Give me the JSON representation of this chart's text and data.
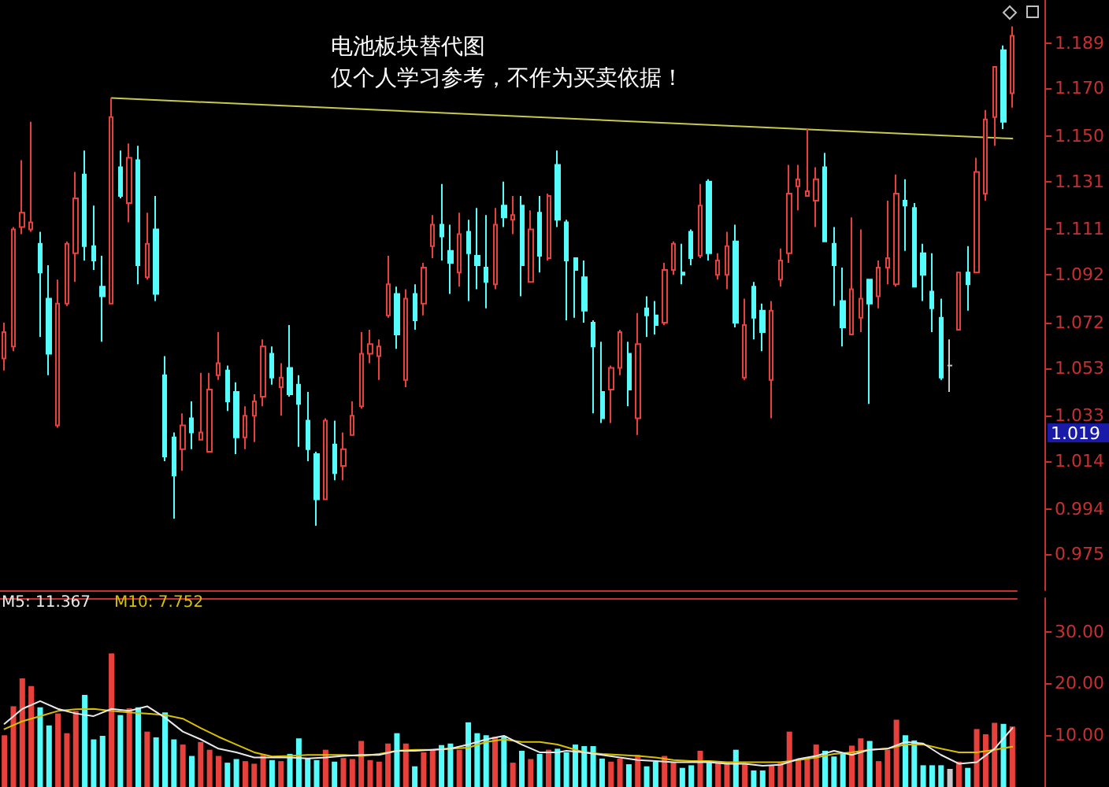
{
  "chart_data": [
    {
      "type": "candlestick",
      "title": "电池板块替代图",
      "subtitle": "仅个人学习参考，不作为买卖依据！",
      "categories": [
        null,
        null,
        null,
        null,
        null,
        null,
        null,
        null,
        null,
        null,
        null,
        null,
        null,
        null,
        null,
        null,
        null,
        null,
        null,
        null,
        null,
        null,
        null,
        null,
        null,
        null,
        null,
        null,
        null,
        null,
        null,
        null,
        null,
        null,
        null,
        null,
        null,
        null,
        null,
        null,
        null,
        null,
        null,
        null,
        null,
        null,
        null,
        null,
        null,
        null,
        null,
        null,
        null,
        null,
        null,
        null,
        null,
        null,
        null,
        null,
        null,
        null,
        null,
        null,
        null,
        null,
        null,
        null,
        null,
        null,
        null,
        null,
        null,
        null,
        null,
        null,
        null,
        null,
        null,
        null,
        null,
        null,
        null,
        null,
        null,
        null,
        null,
        null,
        null,
        null,
        null,
        null,
        null,
        null,
        null,
        null,
        null,
        null,
        null,
        null,
        null,
        null,
        null,
        null,
        null,
        null,
        null,
        null,
        null,
        null,
        null,
        null,
        null,
        null
      ],
      "series": [
        {
          "type": "candlestick",
          "ohlc": [
            [
              1.057,
              1.072,
              1.052,
              1.068
            ],
            [
              1.062,
              1.112,
              1.06,
              1.111
            ],
            [
              1.112,
              1.14,
              1.109,
              1.118
            ],
            [
              1.111,
              1.156,
              1.11,
              1.114
            ],
            [
              1.105,
              1.11,
              1.066,
              1.093
            ],
            [
              1.082,
              1.096,
              1.05,
              1.059
            ],
            [
              1.029,
              1.09,
              1.028,
              1.08
            ],
            [
              1.08,
              1.106,
              1.079,
              1.105
            ],
            [
              1.101,
              1.135,
              1.089,
              1.124
            ],
            [
              1.134,
              1.144,
              1.098,
              1.104
            ],
            [
              1.104,
              1.121,
              1.094,
              1.098
            ],
            [
              1.087,
              1.1,
              1.064,
              1.083
            ],
            [
              1.08,
              1.166,
              1.08,
              1.158
            ],
            [
              1.137,
              1.144,
              1.124,
              1.125
            ],
            [
              1.122,
              1.147,
              1.114,
              1.141
            ],
            [
              1.14,
              1.146,
              1.088,
              1.096
            ],
            [
              1.091,
              1.118,
              1.09,
              1.105
            ],
            [
              1.111,
              1.125,
              1.081,
              1.084
            ],
            [
              1.05,
              1.058,
              1.014,
              1.016
            ],
            [
              1.024,
              1.026,
              0.99,
              1.008
            ],
            [
              1.019,
              1.034,
              1.01,
              1.029
            ],
            [
              1.032,
              1.039,
              1.019,
              1.026
            ],
            [
              1.023,
              1.051,
              1.023,
              1.026
            ],
            [
              1.018,
              1.051,
              1.018,
              1.044
            ],
            [
              1.05,
              1.068,
              1.048,
              1.055
            ],
            [
              1.052,
              1.054,
              1.035,
              1.039
            ],
            [
              1.043,
              1.047,
              1.017,
              1.024
            ],
            [
              1.024,
              1.037,
              1.019,
              1.033
            ],
            [
              1.033,
              1.042,
              1.022,
              1.039
            ],
            [
              1.041,
              1.065,
              1.037,
              1.062
            ],
            [
              1.059,
              1.062,
              1.046,
              1.049
            ],
            [
              1.045,
              1.055,
              1.033,
              1.049
            ],
            [
              1.053,
              1.071,
              1.041,
              1.042
            ],
            [
              1.046,
              1.05,
              1.02,
              1.038
            ],
            [
              1.031,
              1.043,
              1.014,
              1.019
            ],
            [
              1.017,
              1.018,
              0.987,
              0.998
            ],
            [
              0.998,
              1.032,
              0.998,
              1.031
            ],
            [
              1.021,
              1.031,
              1.006,
              1.009
            ],
            [
              1.012,
              1.026,
              1.006,
              1.019
            ],
            [
              1.025,
              1.039,
              1.025,
              1.033
            ],
            [
              1.037,
              1.068,
              1.036,
              1.059
            ],
            [
              1.059,
              1.069,
              1.055,
              1.063
            ],
            [
              1.058,
              1.065,
              1.048,
              1.062
            ],
            [
              1.075,
              1.1,
              1.074,
              1.088
            ],
            [
              1.084,
              1.087,
              1.061,
              1.067
            ],
            [
              1.048,
              1.086,
              1.045,
              1.082
            ],
            [
              1.084,
              1.088,
              1.069,
              1.073
            ],
            [
              1.08,
              1.097,
              1.075,
              1.095
            ],
            [
              1.104,
              1.117,
              1.099,
              1.113
            ],
            [
              1.113,
              1.13,
              1.098,
              1.108
            ],
            [
              1.102,
              1.113,
              1.084,
              1.097
            ],
            [
              1.093,
              1.118,
              1.087,
              1.109
            ],
            [
              1.11,
              1.115,
              1.081,
              1.101
            ],
            [
              1.1,
              1.12,
              1.086,
              1.096
            ],
            [
              1.095,
              1.117,
              1.078,
              1.089
            ],
            [
              1.088,
              1.12,
              1.086,
              1.113
            ],
            [
              1.121,
              1.131,
              1.112,
              1.116
            ],
            [
              1.115,
              1.125,
              1.109,
              1.117
            ],
            [
              1.121,
              1.125,
              1.083,
              1.096
            ],
            [
              1.089,
              1.119,
              1.089,
              1.111
            ],
            [
              1.118,
              1.125,
              1.093,
              1.1
            ],
            [
              1.099,
              1.126,
              1.098,
              1.125
            ],
            [
              1.138,
              1.144,
              1.112,
              1.115
            ],
            [
              1.114,
              1.115,
              1.073,
              1.098
            ],
            [
              1.099,
              1.099,
              1.074,
              1.094
            ],
            [
              1.091,
              1.098,
              1.072,
              1.077
            ],
            [
              1.072,
              1.073,
              1.034,
              1.062
            ],
            [
              1.043,
              1.064,
              1.03,
              1.032
            ],
            [
              1.044,
              1.054,
              1.03,
              1.053
            ],
            [
              1.053,
              1.069,
              1.05,
              1.068
            ],
            [
              1.059,
              1.064,
              1.037,
              1.044
            ],
            [
              1.032,
              1.076,
              1.025,
              1.063
            ],
            [
              1.078,
              1.083,
              1.066,
              1.075
            ],
            [
              1.075,
              1.081,
              1.067,
              1.071
            ],
            [
              1.072,
              1.097,
              1.071,
              1.094
            ],
            [
              1.094,
              1.106,
              1.092,
              1.105
            ],
            [
              1.093,
              1.105,
              1.088,
              1.092
            ],
            [
              1.11,
              1.111,
              1.096,
              1.099
            ],
            [
              1.1,
              1.13,
              1.099,
              1.121
            ],
            [
              1.131,
              1.132,
              1.098,
              1.101
            ],
            [
              1.092,
              1.101,
              1.09,
              1.098
            ],
            [
              1.092,
              1.11,
              1.086,
              1.104
            ],
            [
              1.106,
              1.113,
              1.07,
              1.072
            ],
            [
              1.049,
              1.082,
              1.048,
              1.071
            ],
            [
              1.087,
              1.089,
              1.065,
              1.074
            ],
            [
              1.077,
              1.08,
              1.06,
              1.068
            ],
            [
              1.048,
              1.081,
              1.032,
              1.077
            ],
            [
              1.09,
              1.103,
              1.087,
              1.098
            ],
            [
              1.101,
              1.138,
              1.097,
              1.126
            ],
            [
              1.129,
              1.138,
              1.119,
              1.132
            ],
            [
              1.125,
              1.153,
              1.125,
              1.127
            ],
            [
              1.123,
              1.137,
              1.112,
              1.132
            ],
            [
              1.137,
              1.143,
              1.106,
              1.106
            ],
            [
              1.105,
              1.112,
              1.079,
              1.096
            ],
            [
              1.081,
              1.095,
              1.062,
              1.07
            ],
            [
              1.067,
              1.116,
              1.067,
              1.086
            ],
            [
              1.074,
              1.111,
              1.068,
              1.082
            ],
            [
              1.09,
              1.09,
              1.038,
              1.08
            ],
            [
              1.083,
              1.098,
              1.078,
              1.095
            ],
            [
              1.095,
              1.123,
              1.088,
              1.099
            ],
            [
              1.088,
              1.134,
              1.087,
              1.126
            ],
            [
              1.123,
              1.132,
              1.102,
              1.121
            ],
            [
              1.12,
              1.122,
              1.087,
              1.087
            ],
            [
              1.101,
              1.105,
              1.081,
              1.092
            ],
            [
              1.085,
              1.101,
              1.068,
              1.078
            ],
            [
              1.074,
              1.082,
              1.048,
              1.049
            ],
            [
              1.054,
              1.065,
              1.043,
              1.054
            ],
            [
              1.069,
              1.093,
              1.069,
              1.093
            ],
            [
              1.093,
              1.104,
              1.077,
              1.088
            ],
            [
              1.093,
              1.141,
              1.093,
              1.135
            ],
            [
              1.126,
              1.161,
              1.123,
              1.157
            ],
            [
              1.158,
              1.179,
              1.146,
              1.179
            ],
            [
              1.186,
              1.188,
              1.153,
              1.156
            ],
            [
              1.168,
              1.196,
              1.162,
              1.192
            ]
          ],
          "colors": [
            "#e8413c",
            "#e8413c",
            "#e8413c",
            "#e8413c",
            "#54fcfc",
            "#54fcfc",
            "#e8413c",
            "#e8413c",
            "#e8413c",
            "#54fcfc",
            "#54fcfc",
            "#54fcfc",
            "#e8413c",
            "#54fcfc",
            "#e8413c",
            "#54fcfc",
            "#e8413c",
            "#54fcfc",
            "#54fcfc",
            "#54fcfc",
            "#e8413c",
            "#54fcfc",
            "#e8413c",
            "#e8413c",
            "#e8413c",
            "#54fcfc",
            "#54fcfc",
            "#e8413c",
            "#e8413c",
            "#e8413c",
            "#54fcfc",
            "#e8413c",
            "#54fcfc",
            "#54fcfc",
            "#54fcfc",
            "#54fcfc",
            "#e8413c",
            "#54fcfc",
            "#e8413c",
            "#e8413c",
            "#e8413c",
            "#e8413c",
            "#e8413c",
            "#e8413c",
            "#54fcfc",
            "#e8413c",
            "#54fcfc",
            "#e8413c",
            "#e8413c",
            "#54fcfc",
            "#54fcfc",
            "#e8413c",
            "#54fcfc",
            "#54fcfc",
            "#54fcfc",
            "#e8413c",
            "#54fcfc",
            "#e8413c",
            "#54fcfc",
            "#e8413c",
            "#54fcfc",
            "#e8413c",
            "#54fcfc",
            "#54fcfc",
            "#54fcfc",
            "#54fcfc",
            "#54fcfc",
            "#54fcfc",
            "#e8413c",
            "#e8413c",
            "#54fcfc",
            "#e8413c",
            "#54fcfc",
            "#54fcfc",
            "#e8413c",
            "#e8413c",
            "#54fcfc",
            "#54fcfc",
            "#e8413c",
            "#54fcfc",
            "#e8413c",
            "#e8413c",
            "#54fcfc",
            "#e8413c",
            "#54fcfc",
            "#54fcfc",
            "#e8413c",
            "#e8413c",
            "#e8413c",
            "#e8413c",
            "#e8413c",
            "#e8413c",
            "#54fcfc",
            "#54fcfc",
            "#54fcfc",
            "#e8413c",
            "#e8413c",
            "#54fcfc",
            "#e8413c",
            "#e8413c",
            "#e8413c",
            "#54fcfc",
            "#54fcfc",
            "#54fcfc",
            "#54fcfc",
            "#54fcfc",
            "#c8c8c8",
            "#e8413c",
            "#54fcfc",
            "#e8413c",
            "#e8413c",
            "#e8413c",
            "#54fcfc",
            "#e8413c"
          ]
        },
        {
          "type": "line",
          "color": "#c8c84a",
          "values": [
            null,
            null,
            null,
            null,
            null,
            null,
            null,
            null,
            null,
            null,
            null,
            null,
            1.166,
            null,
            null,
            null,
            null,
            null,
            null,
            null,
            null,
            null,
            null,
            null,
            null,
            null,
            null,
            null,
            null,
            null,
            null,
            null,
            null,
            null,
            null,
            null,
            null,
            null,
            null,
            null,
            null,
            null,
            null,
            null,
            null,
            null,
            null,
            null,
            null,
            null,
            null,
            null,
            null,
            null,
            null,
            null,
            null,
            null,
            null,
            null,
            null,
            null,
            null,
            null,
            null,
            null,
            null,
            null,
            null,
            null,
            null,
            null,
            null,
            null,
            null,
            null,
            null,
            null,
            null,
            null,
            null,
            null,
            null,
            null,
            null,
            null,
            null,
            null,
            null,
            null,
            null,
            null,
            null,
            null,
            null,
            null,
            null,
            null,
            null,
            null,
            null,
            null,
            null,
            null,
            null,
            null,
            null,
            null,
            null,
            null,
            null,
            null,
            null,
            1.149
          ]
        }
      ],
      "ylim": [
        0.96,
        1.207
      ],
      "yticks": [
        1.189,
        {
          "value": 1.17,
          "label": "1.170"
        },
        {
          "value": 1.15,
          "label": "1.150"
        },
        1.131,
        1.111,
        1.092,
        1.072,
        1.053,
        1.033,
        1.014,
        0.994,
        0.975
      ],
      "annotations": [
        "1.019"
      ],
      "grid": false,
      "tick_labels": "y"
    },
    {
      "type": "bar",
      "categories": [
        null,
        null,
        null,
        null,
        null,
        null,
        null,
        null,
        null,
        null,
        null,
        null,
        null,
        null,
        null,
        null,
        null,
        null,
        null,
        null,
        null,
        null,
        null,
        null,
        null,
        null,
        null,
        null,
        null,
        null,
        null,
        null,
        null,
        null,
        null,
        null,
        null,
        null,
        null,
        null,
        null,
        null,
        null,
        null,
        null,
        null,
        null,
        null,
        null,
        null,
        null,
        null,
        null,
        null,
        null,
        null,
        null,
        null,
        null,
        null,
        null,
        null,
        null,
        null,
        null,
        null,
        null,
        null,
        null,
        null,
        null,
        null,
        null,
        null,
        null,
        null,
        null,
        null,
        null,
        null,
        null,
        null,
        null,
        null,
        null,
        null,
        null,
        null,
        null,
        null,
        null,
        null,
        null,
        null,
        null,
        null,
        null,
        null,
        null,
        null,
        null,
        null,
        null,
        null,
        null,
        null,
        null,
        null,
        null,
        null,
        null,
        null,
        null,
        null
      ],
      "series": [
        {
          "type": "bar",
          "values": [
            10,
            15.6,
            21.0,
            19.5,
            15.4,
            11.9,
            14.2,
            10.4,
            14.7,
            17.8,
            9.2,
            9.9,
            25.8,
            13.9,
            15.2,
            15.4,
            10.7,
            9.6,
            14.4,
            9.2,
            8.2,
            6.0,
            8.7,
            7.2,
            6.0,
            4.7,
            5.4,
            5.0,
            4.5,
            6.2,
            5.2,
            5.0,
            6.4,
            9.4,
            5.5,
            5.2,
            7.2,
            4.9,
            5.6,
            5.4,
            8.9,
            5.2,
            4.9,
            8.4,
            10.4,
            8.4,
            4.0,
            6.7,
            7.2,
            8.1,
            8.4,
            7.2,
            12.5,
            10.4,
            10.0,
            9.7,
            9.9,
            4.7,
            7.0,
            5.4,
            6.4,
            7.2,
            7.4,
            6.7,
            8.2,
            7.9,
            7.9,
            5.5,
            4.9,
            5.5,
            4.4,
            6.2,
            4.0,
            4.9,
            6.0,
            4.7,
            3.7,
            4.2,
            7.0,
            4.7,
            4.7,
            4.7,
            7.2,
            4.4,
            3.2,
            3.2,
            4.2,
            4.7,
            10.7,
            5.2,
            5.4,
            8.2,
            7.0,
            5.9,
            6.4,
            8.0,
            9.4,
            8.9,
            5.0,
            7.2,
            13.0,
            10.0,
            9.0,
            4.2,
            4.2,
            4.2,
            3.5,
            4.9,
            3.7,
            11.2,
            10.2,
            12.4,
            12.2,
            11.7
          ],
          "colors": [
            "#e8413c",
            "#e8413c",
            "#e8413c",
            "#e8413c",
            "#54fcfc",
            "#54fcfc",
            "#e8413c",
            "#e8413c",
            "#e8413c",
            "#54fcfc",
            "#54fcfc",
            "#54fcfc",
            "#e8413c",
            "#54fcfc",
            "#e8413c",
            "#54fcfc",
            "#e8413c",
            "#54fcfc",
            "#54fcfc",
            "#54fcfc",
            "#e8413c",
            "#54fcfc",
            "#e8413c",
            "#e8413c",
            "#e8413c",
            "#54fcfc",
            "#54fcfc",
            "#e8413c",
            "#e8413c",
            "#e8413c",
            "#54fcfc",
            "#e8413c",
            "#54fcfc",
            "#54fcfc",
            "#54fcfc",
            "#54fcfc",
            "#e8413c",
            "#54fcfc",
            "#e8413c",
            "#e8413c",
            "#e8413c",
            "#e8413c",
            "#e8413c",
            "#e8413c",
            "#54fcfc",
            "#e8413c",
            "#54fcfc",
            "#e8413c",
            "#e8413c",
            "#54fcfc",
            "#54fcfc",
            "#e8413c",
            "#54fcfc",
            "#54fcfc",
            "#54fcfc",
            "#e8413c",
            "#54fcfc",
            "#e8413c",
            "#54fcfc",
            "#e8413c",
            "#54fcfc",
            "#e8413c",
            "#54fcfc",
            "#54fcfc",
            "#54fcfc",
            "#54fcfc",
            "#54fcfc",
            "#54fcfc",
            "#e8413c",
            "#e8413c",
            "#54fcfc",
            "#e8413c",
            "#54fcfc",
            "#54fcfc",
            "#e8413c",
            "#e8413c",
            "#54fcfc",
            "#54fcfc",
            "#e8413c",
            "#54fcfc",
            "#e8413c",
            "#e8413c",
            "#54fcfc",
            "#e8413c",
            "#54fcfc",
            "#54fcfc",
            "#e8413c",
            "#e8413c",
            "#e8413c",
            "#e8413c",
            "#e8413c",
            "#e8413c",
            "#54fcfc",
            "#54fcfc",
            "#54fcfc",
            "#e8413c",
            "#e8413c",
            "#54fcfc",
            "#e8413c",
            "#e8413c",
            "#e8413c",
            "#54fcfc",
            "#54fcfc",
            "#54fcfc",
            "#54fcfc",
            "#54fcfc",
            "#c8c8c8",
            "#e8413c",
            "#54fcfc",
            "#e8413c",
            "#e8413c",
            "#e8413c",
            "#54fcfc",
            "#e8413c"
          ]
        },
        {
          "type": "line",
          "name": "M5: 11.367",
          "color": "#e8e8e8",
          "values": [
            12.2,
            null,
            15.1,
            null,
            16.6,
            null,
            15.1,
            null,
            14.2,
            null,
            13.7,
            null,
            15.1,
            null,
            14.7,
            null,
            15.6,
            null,
            13.4,
            null,
            10.7,
            null,
            9.2,
            null,
            7.4,
            null,
            6.7,
            null,
            5.7,
            null,
            5.7,
            null,
            5.7,
            null,
            5.5,
            null,
            5.7,
            null,
            6.0,
            null,
            6.2,
            null,
            6.2,
            null,
            7.0,
            null,
            7.0,
            null,
            7.2,
            null,
            7.4,
            null,
            8.2,
            null,
            9.2,
            null,
            9.9,
            null,
            8.2,
            null,
            6.7,
            null,
            6.7,
            7.0,
            null,
            6.7,
            null,
            6.2,
            null,
            5.7,
            null,
            5.2,
            null,
            5.0,
            null,
            4.8,
            null,
            4.8,
            null,
            4.8,
            null,
            4.5,
            null,
            4.5,
            null,
            4.1,
            null,
            4.3,
            null,
            5.4,
            null,
            6.0,
            null,
            7.0,
            null,
            6.2,
            null,
            7.2,
            null,
            7.4,
            null,
            8.7,
            null,
            8.4,
            null,
            6.2,
            null,
            4.5,
            null,
            4.8,
            null,
            7.4,
            null,
            11.4
          ]
        },
        {
          "type": "line",
          "name": "M10: 7.752",
          "color": "#d8c000",
          "values": [
            11.2,
            null,
            12.7,
            null,
            13.7,
            null,
            14.7,
            null,
            15.0,
            null,
            15.1,
            null,
            14.7,
            null,
            14.4,
            null,
            14.2,
            null,
            13.9,
            null,
            13.2,
            null,
            11.4,
            null,
            9.7,
            null,
            8.2,
            null,
            6.7,
            null,
            5.9,
            null,
            6.0,
            null,
            6.2,
            null,
            6.2,
            null,
            6.2,
            null,
            6.0,
            null,
            6.4,
            null,
            7.0,
            null,
            7.2,
            null,
            7.2,
            null,
            7.4,
            null,
            7.6,
            null,
            8.7,
            null,
            9.2,
            null,
            8.7,
            null,
            8.7,
            null,
            8.2,
            null,
            null,
            6.7,
            null,
            6.4,
            null,
            6.2,
            null,
            6.0,
            null,
            5.7,
            null,
            5.2,
            null,
            5.0,
            null,
            5.0,
            null,
            4.8,
            null,
            4.8,
            null,
            4.8,
            null,
            4.8,
            null,
            5.2,
            null,
            5.7,
            null,
            6.4,
            null,
            6.7,
            null,
            7.2,
            null,
            7.4,
            null,
            8.2,
            null,
            8.2,
            null,
            7.4,
            null,
            6.7,
            null,
            6.7,
            null,
            7.2,
            null,
            7.8
          ]
        }
      ],
      "ylim": [
        0,
        36.5
      ],
      "yticks": [
        {
          "value": 10,
          "label": "10.00"
        },
        {
          "value": 20,
          "label": "20.00"
        },
        {
          "value": 30,
          "label": "30.00"
        }
      ],
      "legend": "top left",
      "grid": false,
      "tick_labels": "y"
    }
  ]
}
